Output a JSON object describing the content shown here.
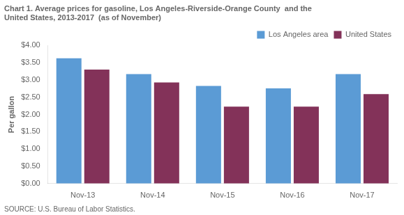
{
  "chart_data": {
    "type": "bar",
    "title": [
      "Chart 1. Average prices for gasoline, Los Angeles-Riverside-Orange County  and the",
      "United States, 2013-2017  (as of November)"
    ],
    "ylabel": "Per gallon",
    "source": "SOURCE: U.S. Bureau of Labor Statistics.",
    "categories": [
      "Nov-13",
      "Nov-14",
      "Nov-15",
      "Nov-16",
      "Nov-17"
    ],
    "series": [
      {
        "name": "Los Angeles area",
        "color": "#5B9BD5",
        "values": [
          3.63,
          3.17,
          2.83,
          2.76,
          3.17
        ]
      },
      {
        "name": "United States",
        "color": "#833259",
        "values": [
          3.3,
          2.93,
          2.23,
          2.23,
          2.59
        ]
      }
    ],
    "ylim": [
      0,
      4.0
    ],
    "yticks": [
      {
        "value": 0.0,
        "label": "$0.00"
      },
      {
        "value": 0.5,
        "label": "$0.50"
      },
      {
        "value": 1.0,
        "label": "$1.00"
      },
      {
        "value": 1.5,
        "label": "$1.50"
      },
      {
        "value": 2.0,
        "label": "$2.00"
      },
      {
        "value": 2.5,
        "label": "$2.50"
      },
      {
        "value": 3.0,
        "label": "$3.00"
      },
      {
        "value": 3.5,
        "label": "$3.50"
      },
      {
        "value": 4.0,
        "label": "$4.00"
      }
    ],
    "grid": false,
    "legend": "upper right"
  }
}
